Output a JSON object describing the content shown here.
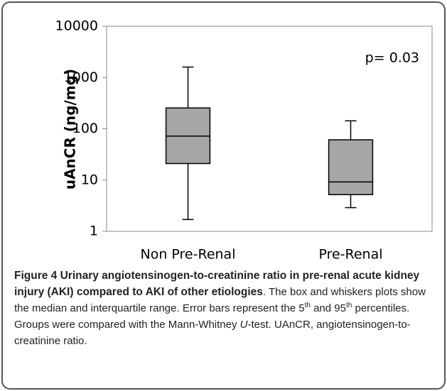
{
  "chart_data": {
    "type": "box",
    "y_label": "uAnCR (ng/mg)",
    "annotation": "p= 0.03",
    "categories": [
      "Non Pre-Renal",
      "Pre-Renal"
    ],
    "boxes": [
      {
        "whislo": 1.7,
        "q1": 21,
        "med": 72,
        "q3": 255,
        "whishi": 1600
      },
      {
        "whislo": 2.9,
        "q1": 5.2,
        "med": 9.2,
        "q3": 61,
        "whishi": 143
      }
    ],
    "color": "#a6a6a6",
    "yscale": "log",
    "ylim": [
      1,
      10000
    ],
    "yticks": [
      1,
      10,
      100,
      1000,
      10000
    ],
    "grid": false
  },
  "caption": [
    {
      "text": "Figure 4 Urinary angiotensinogen-to-creatinine ratio in pre-renal acute kidney injury (AKI) compared to AKI of other etiologies",
      "format": "bold"
    },
    {
      "text": ". The box and whiskers plots show the median and interquartile range. Error bars represent the 5",
      "format": "normal"
    },
    {
      "text": "th",
      "format": "sup"
    },
    {
      "text": " and 95",
      "format": "normal"
    },
    {
      "text": "th",
      "format": "sup"
    },
    {
      "text": " percentiles. Groups were compared with the Mann-Whitney ",
      "format": "normal"
    },
    {
      "text": "U",
      "format": "italic"
    },
    {
      "text": "-test. UAnCR, angiotensinogen-to-creatinine ratio.",
      "format": "normal"
    }
  ]
}
